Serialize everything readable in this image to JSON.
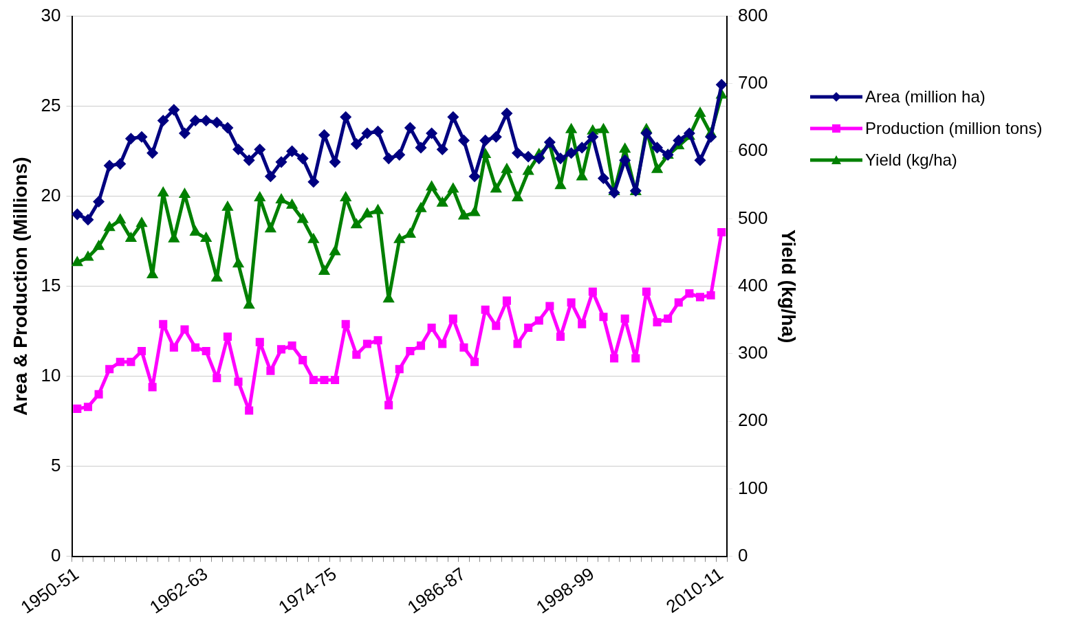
{
  "chart_data": {
    "type": "line",
    "categories": [
      "1950-51",
      null,
      null,
      null,
      null,
      null,
      null,
      null,
      null,
      null,
      null,
      null,
      "1962-63",
      null,
      null,
      null,
      null,
      null,
      null,
      null,
      null,
      null,
      null,
      null,
      "1974-75",
      null,
      null,
      null,
      null,
      null,
      null,
      null,
      null,
      null,
      null,
      null,
      "1986-87",
      null,
      null,
      null,
      null,
      null,
      null,
      null,
      null,
      null,
      null,
      null,
      "1998-99",
      null,
      null,
      null,
      null,
      null,
      null,
      null,
      null,
      null,
      null,
      null,
      "2010-11"
    ],
    "ylabel": "Area & Production (Millions)",
    "y2label": "Yield (kg/ha)",
    "ylim": [
      0,
      30
    ],
    "yticks": [
      0,
      5,
      10,
      15,
      20,
      25,
      30
    ],
    "y2lim": [
      0,
      800
    ],
    "y2ticks": [
      0,
      100,
      200,
      300,
      400,
      500,
      600,
      700,
      800
    ],
    "grid": "y",
    "legend": "right",
    "line_style": "solid",
    "series": [
      {
        "name": "Area (million ha)",
        "color": "#000080",
        "marker": "diamond",
        "values": [
          19.0,
          18.7,
          19.7,
          21.7,
          21.8,
          23.2,
          23.3,
          22.4,
          24.2,
          24.8,
          23.5,
          24.2,
          24.2,
          24.1,
          23.8,
          22.6,
          22.0,
          22.6,
          21.1,
          21.9,
          22.5,
          22.1,
          20.8,
          23.4,
          21.9,
          24.4,
          22.9,
          23.5,
          23.6,
          22.1,
          22.3,
          23.8,
          22.7,
          23.5,
          22.6,
          24.4,
          23.1,
          21.1,
          23.1,
          23.3,
          24.6,
          22.4,
          22.2,
          22.1,
          23.0,
          22.1,
          22.4,
          22.7,
          23.3,
          21.0,
          20.2,
          22.0,
          20.3,
          23.5,
          22.7,
          22.3,
          23.1,
          23.5,
          22.0,
          23.3,
          26.2
        ]
      },
      {
        "name": "Production (million tons)",
        "color": "#ff00ff",
        "marker": "square",
        "values": [
          8.2,
          8.3,
          9.0,
          10.4,
          10.8,
          10.8,
          11.4,
          9.4,
          12.9,
          11.6,
          12.6,
          11.6,
          11.4,
          9.9,
          12.2,
          9.7,
          8.1,
          11.9,
          10.3,
          11.5,
          11.7,
          10.9,
          9.8,
          9.8,
          9.8,
          12.9,
          11.2,
          11.8,
          12.0,
          8.4,
          10.4,
          11.4,
          11.7,
          12.7,
          11.8,
          13.2,
          11.6,
          10.8,
          13.7,
          12.8,
          14.2,
          11.8,
          12.7,
          13.1,
          13.9,
          12.2,
          14.1,
          12.9,
          14.7,
          13.3,
          11.0,
          13.2,
          11.0,
          14.7,
          13.0,
          13.2,
          14.1,
          14.6,
          14.4,
          14.5,
          18.0
        ]
      },
      {
        "name": "Yield (kg/ha)",
        "color": "#008000",
        "marker": "triangle",
        "axis": "y2",
        "values": [
          435,
          443,
          459,
          487,
          498,
          471,
          493,
          417,
          538,
          470,
          536,
          480,
          471,
          412,
          517,
          433,
          372,
          531,
          485,
          528,
          520,
          499,
          469,
          422,
          451,
          531,
          491,
          507,
          512,
          381,
          469,
          477,
          515,
          547,
          523,
          544,
          504,
          509,
          595,
          544,
          573,
          531,
          570,
          595,
          610,
          549,
          632,
          562,
          630,
          632,
          540,
          603,
          540,
          632,
          573,
          594,
          608,
          622,
          656,
          626,
          683
        ]
      }
    ]
  }
}
